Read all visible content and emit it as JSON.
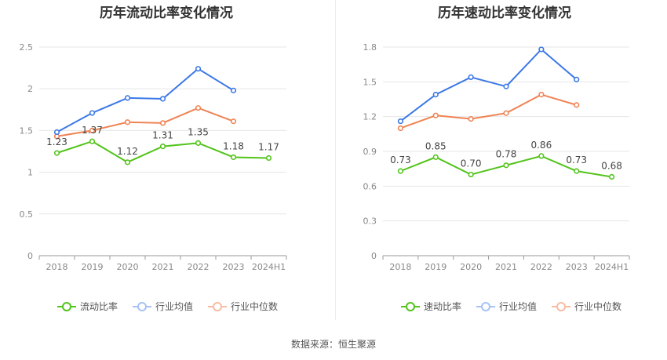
{
  "source_text": "数据来源：恒生聚源",
  "colors": {
    "company": "#52c41a",
    "industry_avg": "#3b78e7",
    "industry_median": "#f08354"
  },
  "chart_data": [
    {
      "type": "line",
      "title": "历年流动比率变化情况",
      "categories": [
        "2018",
        "2019",
        "2020",
        "2021",
        "2022",
        "2023",
        "2024H1"
      ],
      "ylim": [
        0,
        2.5
      ],
      "yticks": [
        "0",
        "0.5",
        "1",
        "1.5",
        "2",
        "2.5"
      ],
      "grid": true,
      "legend_position": "bottom",
      "series": [
        {
          "name": "流动比率",
          "values": [
            1.23,
            1.37,
            1.12,
            1.31,
            1.35,
            1.18,
            1.17
          ],
          "labels": [
            "1.23",
            "1.37",
            "1.12",
            "1.31",
            "1.35",
            "1.18",
            "1.17"
          ]
        },
        {
          "name": "行业均值",
          "values": [
            1.48,
            1.71,
            1.89,
            1.88,
            2.24,
            1.98,
            null
          ]
        },
        {
          "name": "行业中位数",
          "values": [
            1.43,
            1.5,
            1.6,
            1.59,
            1.77,
            1.61,
            null
          ]
        }
      ]
    },
    {
      "type": "line",
      "title": "历年速动比率变化情况",
      "categories": [
        "2018",
        "2019",
        "2020",
        "2021",
        "2022",
        "2023",
        "2024H1"
      ],
      "ylim": [
        0,
        1.8
      ],
      "yticks": [
        "0",
        "0.3",
        "0.6",
        "0.9",
        "1.2",
        "1.5",
        "1.8"
      ],
      "grid": true,
      "legend_position": "bottom",
      "series": [
        {
          "name": "速动比率",
          "values": [
            0.73,
            0.85,
            0.7,
            0.78,
            0.86,
            0.73,
            0.68
          ],
          "labels": [
            "0.73",
            "0.85",
            "0.70",
            "0.78",
            "0.86",
            "0.73",
            "0.68"
          ]
        },
        {
          "name": "行业均值",
          "values": [
            1.16,
            1.39,
            1.54,
            1.46,
            1.78,
            1.52,
            null
          ]
        },
        {
          "name": "行业中位数",
          "values": [
            1.1,
            1.21,
            1.18,
            1.23,
            1.39,
            1.3,
            null
          ]
        }
      ]
    }
  ]
}
